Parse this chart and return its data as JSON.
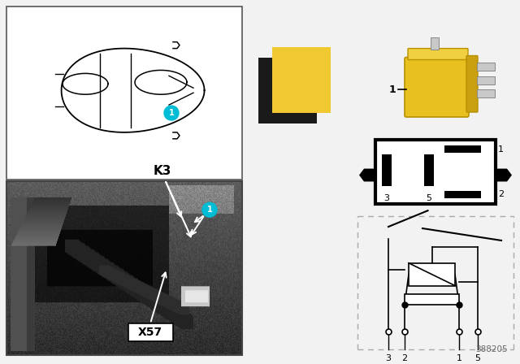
{
  "bg_color": "#f0f0f0",
  "part_number": "388205",
  "label1_color": "#00BCD4",
  "swatch_yellow": "#F0C830",
  "swatch_black": "#1a1a1a",
  "k3_label": "K3",
  "x57_label": "X57"
}
